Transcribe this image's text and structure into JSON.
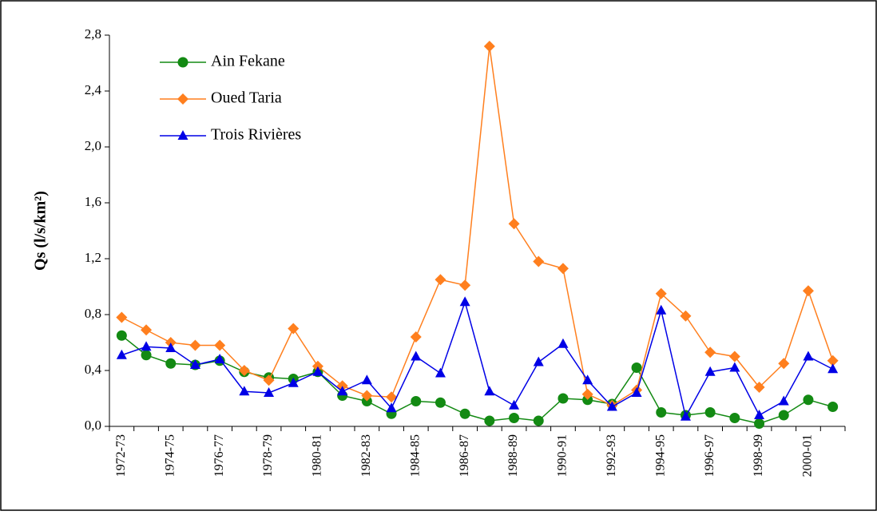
{
  "chart_data": {
    "type": "line",
    "y_label": "Qs (l/s/km²)",
    "categories": [
      "1972-73",
      null,
      "1974-75",
      null,
      "1976-77",
      null,
      "1978-79",
      null,
      "1980-81",
      null,
      "1982-83",
      null,
      "1984-85",
      null,
      "1986-87",
      null,
      "1988-89",
      null,
      "1990-91",
      null,
      "1992-93",
      null,
      "1994-95",
      null,
      "1996-97",
      null,
      "1998-99",
      null,
      "2000-01",
      null
    ],
    "series": [
      {
        "name": "Ain Fekane",
        "color": "#138a13",
        "marker": "circle",
        "values": [
          0.65,
          0.51,
          0.45,
          0.44,
          0.47,
          0.39,
          0.35,
          0.34,
          0.39,
          0.22,
          0.18,
          0.09,
          0.18,
          0.17,
          0.09,
          0.04,
          0.06,
          0.04,
          0.2,
          0.19,
          0.16,
          0.42,
          0.1,
          0.08,
          0.1,
          0.06,
          0.02,
          0.08,
          0.19,
          0.14
        ]
      },
      {
        "name": "Oued Taria",
        "color": "#ff7f1e",
        "marker": "diamond",
        "values": [
          0.78,
          0.69,
          0.6,
          0.58,
          0.58,
          0.4,
          0.33,
          0.7,
          0.43,
          0.29,
          0.22,
          0.21,
          0.64,
          1.05,
          1.01,
          2.72,
          1.45,
          1.18,
          1.13,
          0.23,
          0.15,
          0.26,
          0.95,
          0.79,
          0.53,
          0.5,
          0.28,
          0.45,
          0.97,
          0.47
        ]
      },
      {
        "name": "Trois Rivières",
        "color": "#0000e6",
        "marker": "triangle",
        "values": [
          0.51,
          0.57,
          0.56,
          0.44,
          0.48,
          0.25,
          0.24,
          0.31,
          0.39,
          0.25,
          0.33,
          0.13,
          0.5,
          0.38,
          0.89,
          0.25,
          0.15,
          0.46,
          0.59,
          0.33,
          0.14,
          0.24,
          0.83,
          0.07,
          0.39,
          0.42,
          0.08,
          0.18,
          0.5,
          0.41
        ]
      }
    ],
    "ylim": [
      0,
      2.8
    ],
    "yticks": [
      {
        "value": 0,
        "label": "0,0"
      },
      {
        "value": 0.4,
        "label": "0,4"
      },
      {
        "value": 0.8,
        "label": "0,8"
      },
      {
        "value": 1.2,
        "label": "1,2"
      },
      {
        "value": 1.6,
        "label": "1,6"
      },
      {
        "value": 2.0,
        "label": "2,0"
      },
      {
        "value": 2.4,
        "label": "2,4"
      },
      {
        "value": 2.8,
        "label": "2,8"
      }
    ],
    "grid": false,
    "legend": "upper left"
  }
}
